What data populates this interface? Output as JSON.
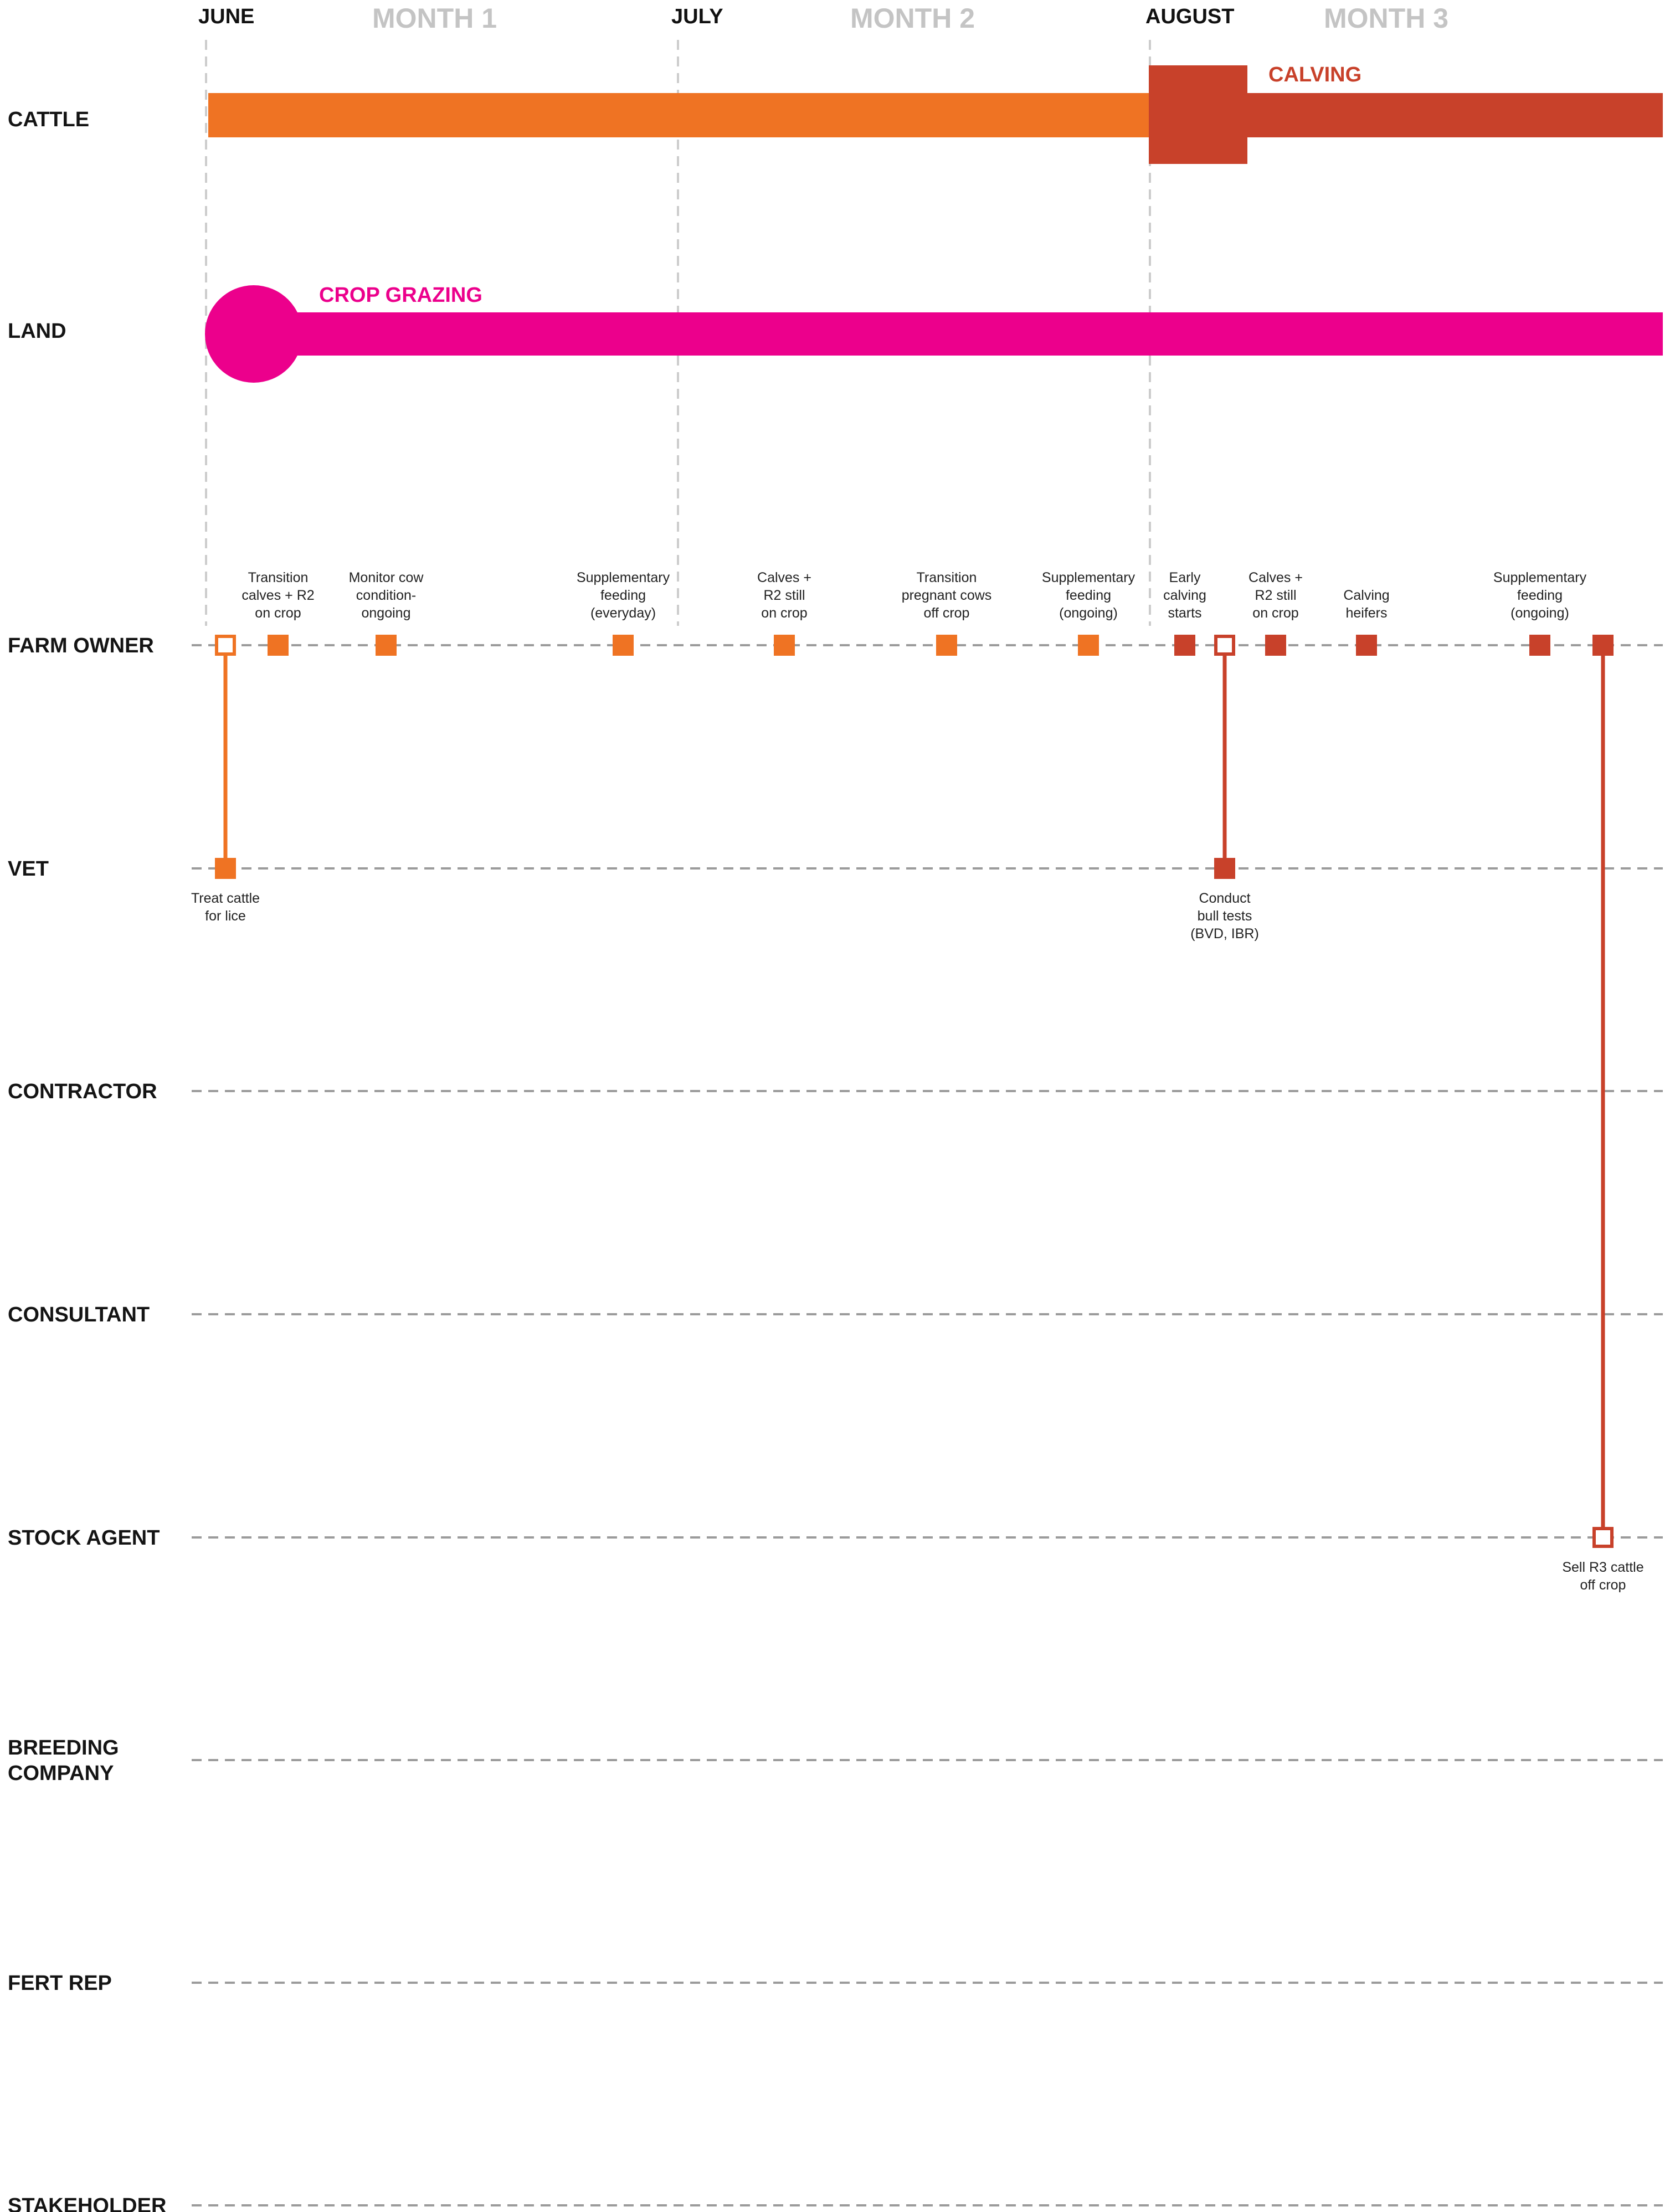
{
  "colors": {
    "orange": "#ef7323",
    "red": "#c8412a",
    "magenta": "#ec008c",
    "grid": "#9b9b9b",
    "month_guide": "#cccccc",
    "month_name": "#c4c4c4",
    "text": "#141414"
  },
  "months": [
    {
      "label": "JUNE",
      "name": "MONTH 1"
    },
    {
      "label": "JULY",
      "name": "MONTH 2"
    },
    {
      "label": "AUGUST",
      "name": "MONTH 3"
    }
  ],
  "bars": {
    "cattle": {
      "row": "CATTLE",
      "label": "CALVING"
    },
    "land": {
      "row": "LAND",
      "label": "CROP GRAZING"
    }
  },
  "rows": [
    {
      "id": "farm_owner",
      "label": [
        "FARM OWNER"
      ]
    },
    {
      "id": "vet",
      "label": [
        "VET"
      ]
    },
    {
      "id": "contractor",
      "label": [
        "CONTRACTOR"
      ]
    },
    {
      "id": "consultant",
      "label": [
        "CONSULTANT"
      ]
    },
    {
      "id": "stock_agent",
      "label": [
        "STOCK AGENT"
      ]
    },
    {
      "id": "breeding_company",
      "label": [
        "BREEDING",
        "COMPANY"
      ]
    },
    {
      "id": "fert_rep",
      "label": [
        "FERT REP"
      ]
    },
    {
      "id": "stakeholder",
      "label": [
        "STAKEHOLDER"
      ]
    }
  ],
  "events": [
    {
      "id": "fo1",
      "row": "farm_owner",
      "color": "orange",
      "style": "hollow",
      "label": []
    },
    {
      "id": "fo2",
      "row": "farm_owner",
      "color": "orange",
      "style": "filled",
      "label": [
        "Transition",
        "calves + R2",
        "on crop"
      ]
    },
    {
      "id": "fo3",
      "row": "farm_owner",
      "color": "orange",
      "style": "filled",
      "label": [
        "Monitor cow",
        "condition-",
        "ongoing"
      ]
    },
    {
      "id": "fo4",
      "row": "farm_owner",
      "color": "orange",
      "style": "filled",
      "label": [
        "Supplementary",
        "feeding",
        "(everyday)"
      ]
    },
    {
      "id": "fo5",
      "row": "farm_owner",
      "color": "orange",
      "style": "filled",
      "label": [
        "Calves +",
        "R2 still",
        "on crop"
      ]
    },
    {
      "id": "fo6",
      "row": "farm_owner",
      "color": "orange",
      "style": "filled",
      "label": [
        "Transition",
        "pregnant cows",
        "off crop"
      ]
    },
    {
      "id": "fo7",
      "row": "farm_owner",
      "color": "orange",
      "style": "filled",
      "label": [
        "Supplementary",
        "feeding",
        "(ongoing)"
      ]
    },
    {
      "id": "fo8",
      "row": "farm_owner",
      "color": "red",
      "style": "filled",
      "label": [
        "Early",
        "calving",
        "starts"
      ]
    },
    {
      "id": "fo9",
      "row": "farm_owner",
      "color": "red",
      "style": "hollow",
      "label": []
    },
    {
      "id": "fo10",
      "row": "farm_owner",
      "color": "red",
      "style": "filled",
      "label": [
        "Calves +",
        "R2 still",
        "on crop"
      ]
    },
    {
      "id": "fo11",
      "row": "farm_owner",
      "color": "red",
      "style": "filled",
      "label": [
        "Calving",
        "heifers"
      ]
    },
    {
      "id": "fo12",
      "row": "farm_owner",
      "color": "red",
      "style": "filled",
      "label": [
        "Supplementary",
        "feeding",
        "(ongoing)"
      ]
    },
    {
      "id": "fo13",
      "row": "farm_owner",
      "color": "red",
      "style": "filled",
      "label": []
    },
    {
      "id": "v1",
      "row": "vet",
      "color": "orange",
      "style": "filled",
      "label": [
        "Treat cattle",
        "for lice"
      ]
    },
    {
      "id": "v2",
      "row": "vet",
      "color": "red",
      "style": "filled",
      "label": [
        "Conduct",
        "bull tests",
        "(BVD, IBR)"
      ]
    },
    {
      "id": "s1",
      "row": "stock_agent",
      "color": "red",
      "style": "hollow",
      "label": [
        "Sell R3 cattle",
        "off crop"
      ]
    }
  ],
  "links": [
    {
      "from": "fo1",
      "to": "v1",
      "color": "orange"
    },
    {
      "from": "fo9",
      "to": "v2",
      "color": "red"
    },
    {
      "from": "fo13",
      "to": "s1",
      "color": "red"
    }
  ]
}
